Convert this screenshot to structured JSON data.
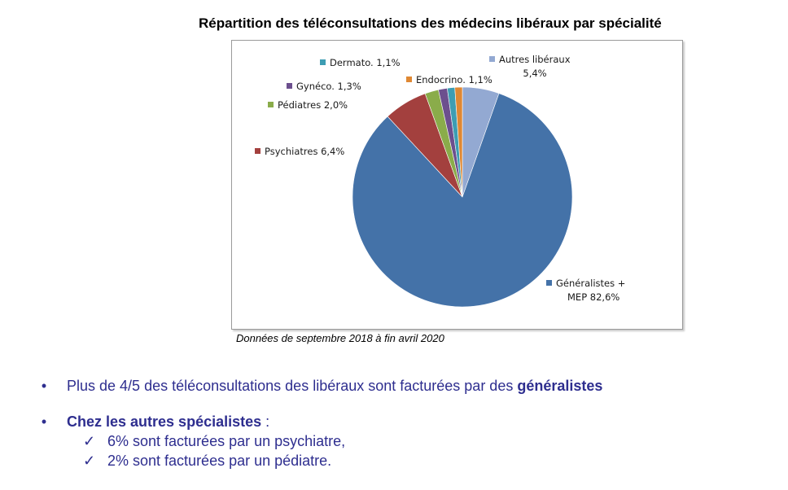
{
  "title": "Répartition des téléconsultations des médecins libéraux par spécialité",
  "caption": "Données de septembre 2018 à  fin avril 2020",
  "chart_data": {
    "type": "pie",
    "slices": [
      {
        "label_lines": [
          "Autres libéraux",
          "5,4%"
        ],
        "value": 5.4,
        "color": "#93a9d2"
      },
      {
        "label_lines": [
          "Généralistes +",
          "MEP 82,6%"
        ],
        "value": 82.6,
        "color": "#4472a8"
      },
      {
        "label_lines": [
          "Psychiatres 6,4%"
        ],
        "value": 6.4,
        "color": "#a3403e"
      },
      {
        "label_lines": [
          "Pédiatres 2,0%"
        ],
        "value": 2.0,
        "color": "#8aac4a"
      },
      {
        "label_lines": [
          "Gynéco. 1,3%"
        ],
        "value": 1.3,
        "color": "#6c4f8e"
      },
      {
        "label_lines": [
          "Dermato. 1,1%"
        ],
        "value": 1.1,
        "color": "#3d9db3"
      },
      {
        "label_lines": [
          "Endocrino. 1,1%"
        ],
        "value": 1.1,
        "color": "#df8833"
      }
    ]
  },
  "bullets": {
    "b1_text": "Plus de 4/5 des téléconsultations des libéraux sont facturées par des ",
    "b1_strong": "généralistes",
    "b2_strong": "Chez les autres spécialistes",
    "b2_text": " :",
    "checks": [
      "6% sont facturées par un psychiatre,",
      "2% sont facturées par un pédiatre."
    ]
  }
}
